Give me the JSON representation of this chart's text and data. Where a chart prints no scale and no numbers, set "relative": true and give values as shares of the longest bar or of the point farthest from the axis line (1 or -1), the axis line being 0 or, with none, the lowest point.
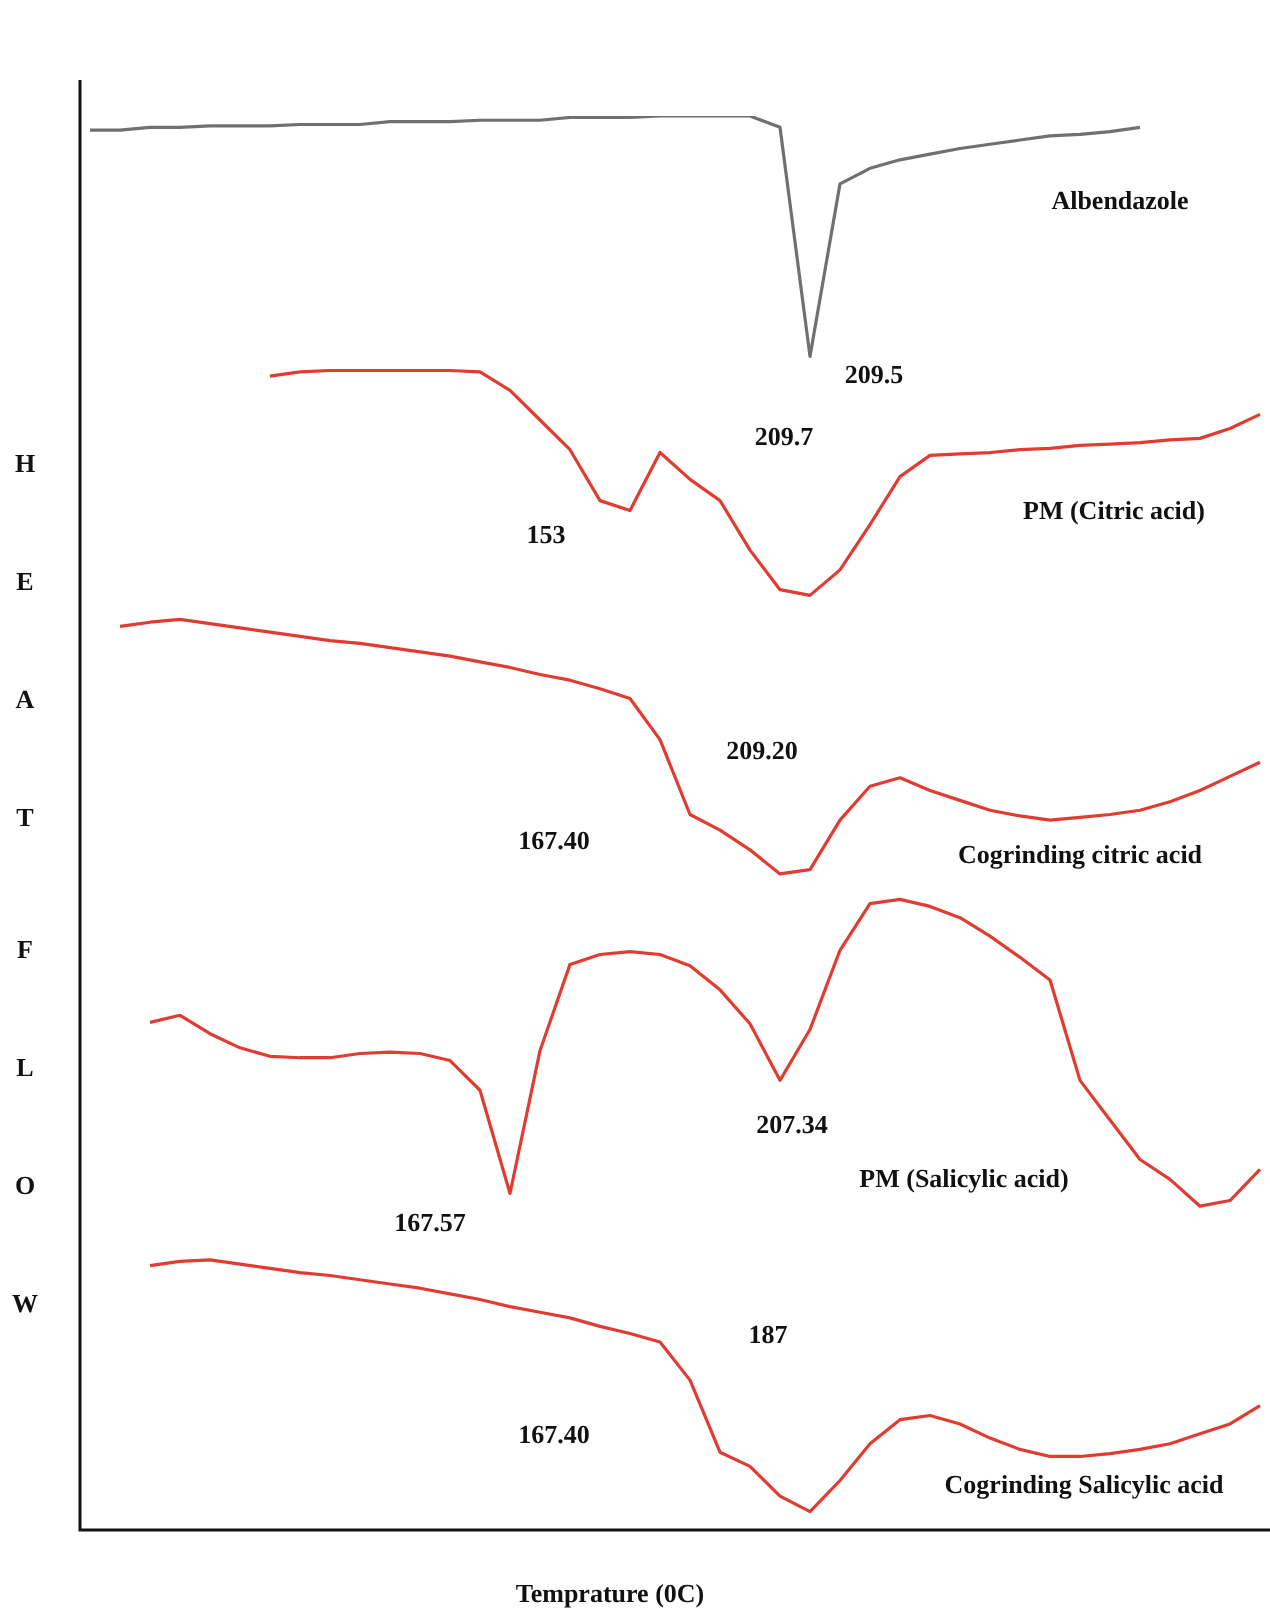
{
  "chart_data": {
    "type": "line",
    "relative": true,
    "ylabel": "HEAT FLOW",
    "xlabel": "Temprature (0C)",
    "legend": false,
    "grid": false,
    "marker": "none",
    "line_style": "solid",
    "categories": [
      null,
      null,
      null,
      null,
      null,
      null,
      null,
      null,
      null,
      null,
      null,
      null,
      null,
      null,
      null,
      null,
      null,
      null,
      null,
      null,
      null,
      null,
      null,
      null,
      null,
      null,
      null,
      null,
      null,
      null,
      null,
      null,
      null,
      null,
      null,
      null,
      null,
      null,
      null,
      null
    ],
    "series": [
      {
        "name": "Albendazole",
        "color": "#707070",
        "values": [
          0.99,
          0.99,
          0.992,
          0.992,
          0.993,
          0.993,
          0.993,
          0.994,
          0.994,
          0.994,
          0.996,
          0.996,
          0.996,
          0.997,
          0.997,
          0.997,
          0.999,
          0.999,
          0.999,
          1.0,
          1.0,
          1.0,
          1.0,
          0.992,
          0.83,
          0.952,
          0.963,
          0.969,
          0.973,
          0.977,
          0.98,
          0.983,
          0.986,
          0.987,
          0.989,
          0.992,
          null,
          null,
          null,
          null
        ]
      },
      {
        "name": "PM (Citric acid)",
        "color": "#e03c31",
        "values": [
          null,
          null,
          null,
          null,
          null,
          null,
          0.816,
          0.819,
          0.82,
          0.82,
          0.82,
          0.82,
          0.82,
          0.819,
          0.806,
          0.785,
          0.764,
          0.728,
          0.721,
          0.762,
          0.743,
          0.728,
          0.693,
          0.665,
          0.661,
          0.679,
          0.711,
          0.745,
          0.76,
          0.761,
          0.762,
          0.764,
          0.765,
          0.767,
          0.768,
          0.769,
          0.771,
          0.772,
          0.779,
          0.789
        ]
      },
      {
        "name": "Cogrinding citric acid",
        "color": "#e03c31",
        "values": [
          null,
          0.639,
          0.642,
          0.644,
          0.641,
          0.638,
          0.635,
          0.632,
          0.629,
          0.627,
          0.624,
          0.621,
          0.618,
          0.614,
          0.61,
          0.605,
          0.601,
          0.595,
          0.588,
          0.559,
          0.506,
          0.495,
          0.481,
          0.464,
          0.467,
          0.502,
          0.526,
          0.532,
          0.523,
          0.516,
          0.509,
          0.505,
          0.502,
          0.504,
          0.506,
          0.509,
          0.515,
          0.523,
          0.533,
          0.543
        ]
      },
      {
        "name": "PM (Salicylic acid)",
        "color": "#e03c31",
        "values": [
          null,
          null,
          0.359,
          0.364,
          0.351,
          0.341,
          0.335,
          0.334,
          0.334,
          0.337,
          0.338,
          0.337,
          0.332,
          0.311,
          0.238,
          0.339,
          0.4,
          0.407,
          0.409,
          0.407,
          0.399,
          0.382,
          0.358,
          0.318,
          0.354,
          0.41,
          0.443,
          0.446,
          0.441,
          0.433,
          0.42,
          0.405,
          0.389,
          0.318,
          0.29,
          0.262,
          0.248,
          0.229,
          0.233,
          0.255
        ]
      },
      {
        "name": "Cogrinding Salicylic acid",
        "color": "#e03c31",
        "values": [
          null,
          null,
          0.187,
          0.19,
          0.191,
          0.188,
          0.185,
          0.182,
          0.18,
          0.177,
          0.174,
          0.171,
          0.167,
          0.163,
          0.158,
          0.154,
          0.15,
          0.144,
          0.139,
          0.133,
          0.106,
          0.055,
          0.045,
          0.024,
          0.013,
          0.035,
          0.061,
          0.078,
          0.081,
          0.075,
          0.065,
          0.057,
          0.052,
          0.052,
          0.054,
          0.057,
          0.061,
          0.068,
          0.075,
          0.088
        ]
      }
    ],
    "annotations": [
      "209.5",
      "153",
      "209.7",
      "209.20",
      "167.40",
      "167.57",
      "207.34",
      "187",
      "167.40"
    ]
  }
}
